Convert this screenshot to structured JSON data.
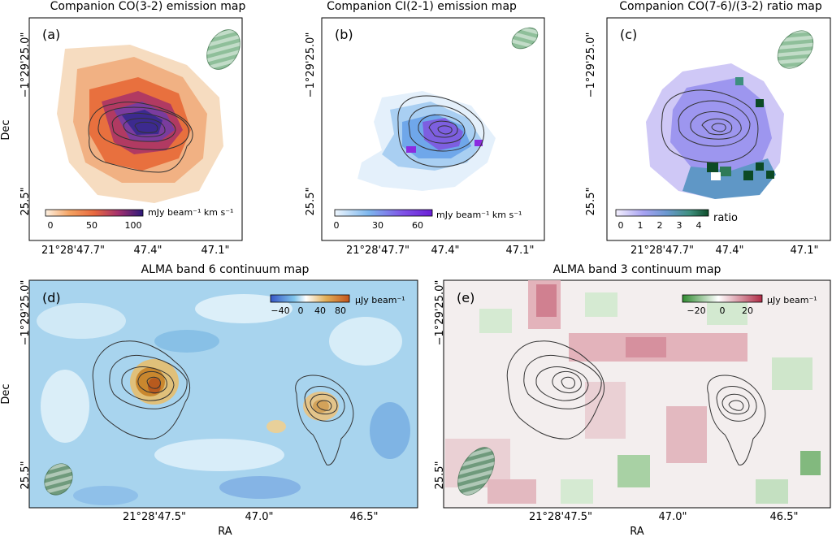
{
  "figure": {
    "panels": [
      {
        "id": "a",
        "title": "Companion CO(3-2) emission map",
        "label": "(a)",
        "colorbar": {
          "ticks": [
            "0",
            "50",
            "100"
          ],
          "unit": "mJy beam⁻¹ km s⁻¹"
        },
        "x_ticks": [
          "21°28'47.7\"",
          "47.4\"",
          "47.1\""
        ],
        "y_ticks": [
          "−1°29'25.0\"",
          "25.5\""
        ],
        "ylabel": "Dec",
        "colors": {
          "map": "#e9763f",
          "beam": "#8fbf9a"
        }
      },
      {
        "id": "b",
        "title": "Companion CI(2-1) emission map",
        "label": "(b)",
        "colorbar": {
          "ticks": [
            "0",
            "30",
            "60"
          ],
          "unit": "mJy beam⁻¹ km s⁻¹"
        },
        "x_ticks": [
          "21°28'47.7\"",
          "47.4\"",
          "47.1\""
        ],
        "y_ticks": [
          "−1°29'25.0\"",
          "25.5\""
        ],
        "colors": {
          "map": "#6d8fe6",
          "beam": "#8fbf9a"
        }
      },
      {
        "id": "c",
        "title": "Companion CO(7-6)/(3-2) ratio map",
        "label": "(c)",
        "colorbar": {
          "ticks": [
            "0",
            "1",
            "2",
            "3",
            "4"
          ],
          "unit": "ratio"
        },
        "x_ticks": [
          "21°28'47.7\"",
          "47.4\"",
          "47.1\""
        ],
        "y_ticks": [
          "−1°29'25.0\"",
          "25.5\""
        ],
        "colors": {
          "map": "#8f8ff0",
          "beam": "#8fbf9a"
        }
      },
      {
        "id": "d",
        "title": "ALMA band 6 continuum map",
        "label": "(d)",
        "colorbar": {
          "ticks": [
            "−40",
            "0",
            "40",
            "80"
          ],
          "unit": "μJy beam⁻¹"
        },
        "x_ticks": [
          "21°28'47.5\"",
          "47.0\"",
          "46.5\""
        ],
        "y_ticks": [
          "−1°29'25.0\"",
          "25.5\""
        ],
        "xlabel": "RA",
        "ylabel": "Dec",
        "colors": {
          "map": "#a8d4ee",
          "beam": "#6f9a7c"
        }
      },
      {
        "id": "e",
        "title": "ALMA band 3 continuum map",
        "label": "(e)",
        "colorbar": {
          "ticks": [
            "−20",
            "0",
            "20"
          ],
          "unit": "μJy beam⁻¹"
        },
        "x_ticks": [
          "21°28'47.5\"",
          "47.0\"",
          "46.5\""
        ],
        "y_ticks": [
          "−1°29'25.0\"",
          "25.5\""
        ],
        "xlabel": "RA",
        "colors": {
          "map": "#e3b3bb",
          "beam": "#6f9a7c"
        }
      }
    ]
  }
}
